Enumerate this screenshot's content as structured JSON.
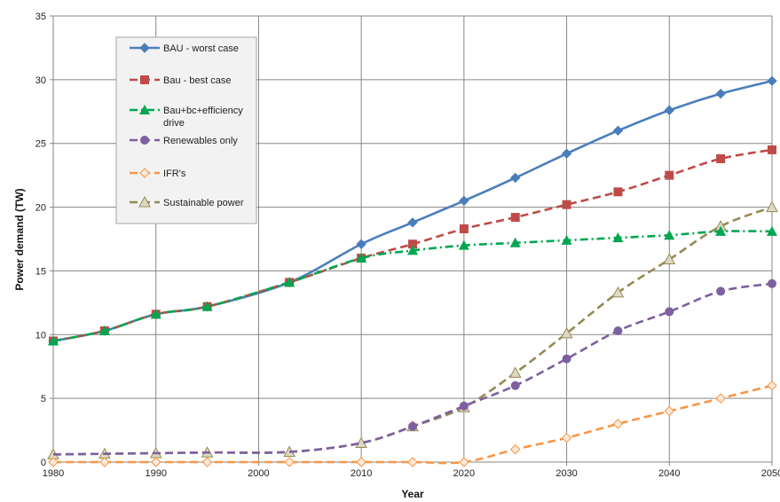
{
  "chart_data": {
    "type": "line",
    "xlabel": "Year",
    "ylabel": "Power demand (TW)",
    "xlim": [
      1980,
      2050
    ],
    "ylim": [
      0,
      35
    ],
    "x_ticks": [
      "1980",
      "1990",
      "2000",
      "2010",
      "2020",
      "2030",
      "2040",
      "2050"
    ],
    "y_ticks": [
      "0",
      "5",
      "10",
      "15",
      "20",
      "25",
      "30",
      "35"
    ],
    "grid": true,
    "legend_position": "top-left",
    "series": [
      {
        "name": "BAU - worst case",
        "color": "#4a7ebb",
        "dash": "solid",
        "marker": "diamond-filled",
        "points": [
          [
            1980,
            9.5
          ],
          [
            1985,
            10.3
          ],
          [
            1990,
            11.6
          ],
          [
            1995,
            12.2
          ],
          [
            2003,
            14.1
          ],
          [
            2010,
            17.1
          ],
          [
            2015,
            18.8
          ],
          [
            2020,
            20.5
          ],
          [
            2025,
            22.3
          ],
          [
            2030,
            24.2
          ],
          [
            2035,
            26.0
          ],
          [
            2040,
            27.6
          ],
          [
            2045,
            28.9
          ],
          [
            2050,
            29.9
          ]
        ],
        "marker_x": [
          1980,
          1985,
          1990,
          1995,
          2003,
          2010,
          2015,
          2020,
          2025,
          2030,
          2035,
          2040,
          2045,
          2050
        ]
      },
      {
        "name": "Bau - best case",
        "color": "#be4b48",
        "dash": "dashed",
        "marker": "square",
        "points": [
          [
            1980,
            9.5
          ],
          [
            1985,
            10.3
          ],
          [
            1990,
            11.6
          ],
          [
            1995,
            12.2
          ],
          [
            2003,
            14.1
          ],
          [
            2010,
            16.0
          ],
          [
            2015,
            17.1
          ],
          [
            2020,
            18.3
          ],
          [
            2025,
            19.2
          ],
          [
            2030,
            20.2
          ],
          [
            2035,
            21.2
          ],
          [
            2040,
            22.5
          ],
          [
            2045,
            23.8
          ],
          [
            2050,
            24.5
          ]
        ],
        "marker_x": [
          1980,
          1985,
          1990,
          1995,
          2003,
          2010,
          2015,
          2020,
          2025,
          2030,
          2035,
          2040,
          2045,
          2050
        ]
      },
      {
        "name": "Bau+bc+efficiency drive",
        "name_lines": [
          "Bau+bc+efficiency",
          "drive"
        ],
        "color": "#00a651",
        "dash": "dashdot",
        "marker": "triangle-filled",
        "points": [
          [
            1980,
            9.5
          ],
          [
            1985,
            10.3
          ],
          [
            1990,
            11.6
          ],
          [
            1995,
            12.2
          ],
          [
            2003,
            14.1
          ],
          [
            2010,
            16.0
          ],
          [
            2015,
            16.6
          ],
          [
            2020,
            17.0
          ],
          [
            2025,
            17.2
          ],
          [
            2030,
            17.4
          ],
          [
            2035,
            17.6
          ],
          [
            2040,
            17.8
          ],
          [
            2045,
            18.1
          ],
          [
            2050,
            18.1
          ]
        ],
        "marker_x": [
          1980,
          1985,
          1990,
          1995,
          2003,
          2010,
          2015,
          2020,
          2025,
          2030,
          2035,
          2040,
          2045,
          2050
        ]
      },
      {
        "name": "Renewables only",
        "color": "#7d60a0",
        "dash": "dashed",
        "marker": "circle",
        "points": [
          [
            1980,
            0.6
          ],
          [
            1985,
            0.65
          ],
          [
            1990,
            0.7
          ],
          [
            1995,
            0.75
          ],
          [
            2003,
            0.8
          ],
          [
            2010,
            1.5
          ],
          [
            2015,
            2.8
          ],
          [
            2020,
            4.4
          ],
          [
            2025,
            6.0
          ],
          [
            2030,
            8.1
          ],
          [
            2035,
            10.3
          ],
          [
            2040,
            11.8
          ],
          [
            2045,
            13.4
          ],
          [
            2050,
            14.0
          ]
        ],
        "marker_x": [
          2015,
          2020,
          2025,
          2030,
          2035,
          2040,
          2045,
          2050
        ]
      },
      {
        "name": "IFR's",
        "color": "#f79646",
        "dash": "dashed",
        "marker": "diamond-open",
        "points": [
          [
            1980,
            0
          ],
          [
            1985,
            0
          ],
          [
            1990,
            0
          ],
          [
            1995,
            0
          ],
          [
            2003,
            0
          ],
          [
            2010,
            0
          ],
          [
            2015,
            0
          ],
          [
            2020,
            0
          ],
          [
            2025,
            1.0
          ],
          [
            2030,
            1.9
          ],
          [
            2035,
            3.0
          ],
          [
            2040,
            4.0
          ],
          [
            2045,
            5.0
          ],
          [
            2050,
            6.0
          ]
        ],
        "marker_x": [
          1980,
          1985,
          1990,
          1995,
          2003,
          2010,
          2015,
          2020,
          2025,
          2030,
          2035,
          2040,
          2045,
          2050
        ]
      },
      {
        "name": "Sustainable power",
        "color": "#948a54",
        "dash": "dashed",
        "marker": "triangle-open",
        "points": [
          [
            1980,
            0.6
          ],
          [
            1985,
            0.65
          ],
          [
            1990,
            0.7
          ],
          [
            1995,
            0.75
          ],
          [
            2003,
            0.8
          ],
          [
            2010,
            1.5
          ],
          [
            2015,
            2.8
          ],
          [
            2020,
            4.3
          ],
          [
            2025,
            7.0
          ],
          [
            2030,
            10.1
          ],
          [
            2035,
            13.3
          ],
          [
            2040,
            15.9
          ],
          [
            2045,
            18.5
          ],
          [
            2050,
            20.0
          ]
        ],
        "marker_x": [
          1980,
          1985,
          1990,
          1995,
          2003,
          2010,
          2015,
          2020,
          2025,
          2030,
          2035,
          2040,
          2045,
          2050
        ]
      }
    ]
  }
}
